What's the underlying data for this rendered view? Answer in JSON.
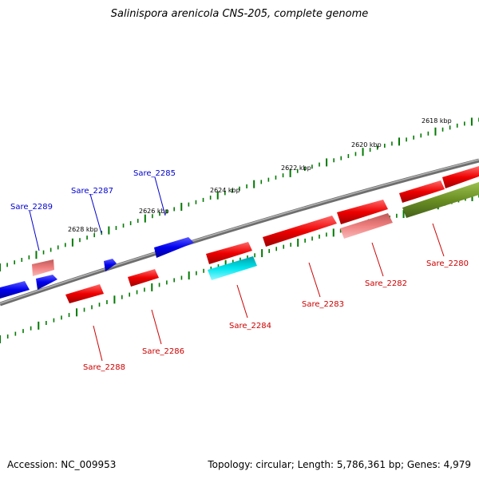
{
  "title": "Salinispora arenicola CNS-205, complete genome",
  "footer": {
    "accession": "Accession: NC_009953",
    "summary": "Topology: circular; Length: 5,786,361 bp; Genes: 4,979"
  },
  "colors": {
    "backbone": "#808080",
    "tick": "#007a00",
    "forward_label": "#0000cc",
    "reverse_label": "#cc0000",
    "gene_blue": "#0000ee",
    "gene_red": "#ee0000",
    "gene_pink": "#f08080",
    "gene_cyan": "#00e5ee",
    "gene_olive": "#6b8e23"
  },
  "scale_labels": [
    "2618 kbp",
    "2620 kbp",
    "2622 kbp",
    "2624 kbp",
    "2626 kbp",
    "2628 kbp"
  ],
  "gene_labels": [
    {
      "text": "Sare_2289",
      "strand": "forward"
    },
    {
      "text": "Sare_2287",
      "strand": "forward"
    },
    {
      "text": "Sare_2285",
      "strand": "forward"
    },
    {
      "text": "Sare_2288",
      "strand": "reverse"
    },
    {
      "text": "Sare_2286",
      "strand": "reverse"
    },
    {
      "text": "Sare_2284",
      "strand": "reverse"
    },
    {
      "text": "Sare_2283",
      "strand": "reverse"
    },
    {
      "text": "Sare_2282",
      "strand": "reverse"
    },
    {
      "text": "Sare_2280",
      "strand": "reverse"
    }
  ]
}
